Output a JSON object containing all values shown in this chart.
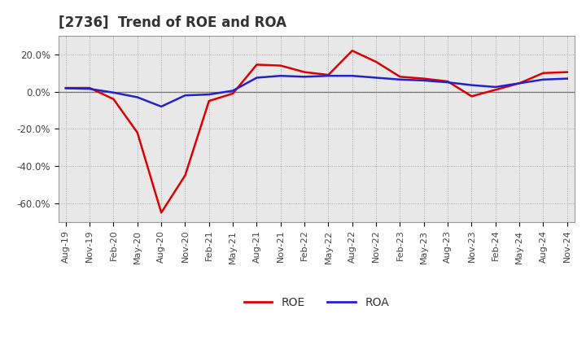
{
  "title": "[2736]  Trend of ROE and ROA",
  "x_labels": [
    "Aug-19",
    "Nov-19",
    "Feb-20",
    "May-20",
    "Aug-20",
    "Nov-20",
    "Feb-21",
    "May-21",
    "Aug-21",
    "Nov-21",
    "Feb-22",
    "May-22",
    "Aug-22",
    "Nov-22",
    "Feb-23",
    "May-23",
    "Aug-23",
    "Nov-23",
    "Feb-24",
    "May-24",
    "Aug-24",
    "Nov-24"
  ],
  "roe": [
    2.0,
    2.0,
    -4.0,
    -22.0,
    -65.0,
    -45.0,
    -5.0,
    -1.0,
    14.5,
    14.0,
    10.5,
    9.0,
    22.0,
    16.0,
    8.0,
    7.0,
    5.5,
    -2.5,
    1.0,
    4.5,
    10.0,
    10.5
  ],
  "roa": [
    1.8,
    1.5,
    -0.5,
    -3.0,
    -8.0,
    -2.0,
    -1.5,
    0.5,
    7.5,
    8.5,
    8.0,
    8.5,
    8.5,
    7.5,
    6.5,
    6.0,
    5.0,
    3.5,
    2.5,
    4.5,
    6.5,
    7.0
  ],
  "roe_color": "#dd0000",
  "roa_color": "#2222cc",
  "background_color": "#ffffff",
  "grid_color": "#999999",
  "plot_bg_color": "#e8e8e8",
  "ylim": [
    -70,
    30
  ],
  "yticks": [
    -60,
    -40,
    -20,
    0,
    20
  ],
  "ytick_labels": [
    "-60.0%",
    "-40.0%",
    "-20.0%",
    "0.0%",
    "20.0%"
  ]
}
